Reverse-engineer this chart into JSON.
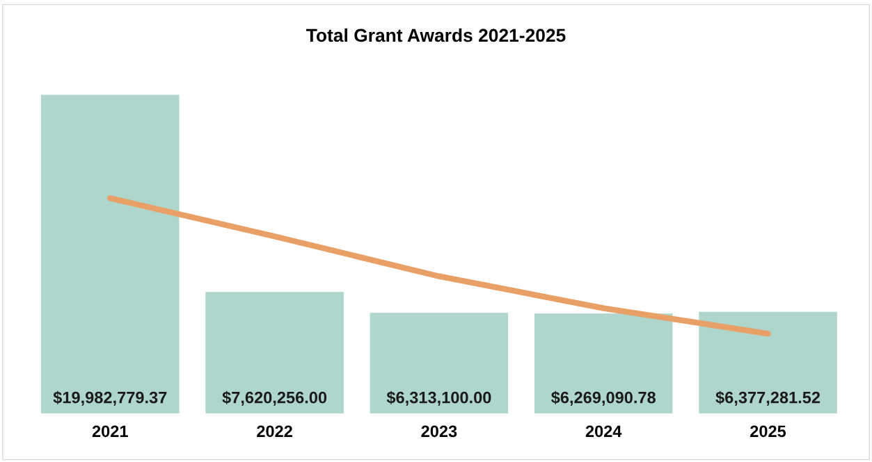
{
  "chart_data": {
    "type": "bar",
    "title": "Total Grant Awards 2021-2025",
    "categories": [
      "2021",
      "2022",
      "2023",
      "2024",
      "2025"
    ],
    "series": [
      {
        "color": "#aed6cc",
        "values": [
          19982779.37,
          7620256.0,
          6313100.0,
          6269090.78,
          6377281.52
        ],
        "value_labels": [
          "$19,982,779.37",
          "$7,620,256.00",
          "$6,313,100.00",
          "$6,269,090.78",
          "$6,377,281.52"
        ]
      },
      {
        "type": "line",
        "color": "#e8a066",
        "values": [
          13500000,
          11100000,
          8600000,
          6600000,
          5000000
        ]
      }
    ],
    "grid": false,
    "legend": false,
    "marker": "none",
    "line_style": "solid"
  }
}
